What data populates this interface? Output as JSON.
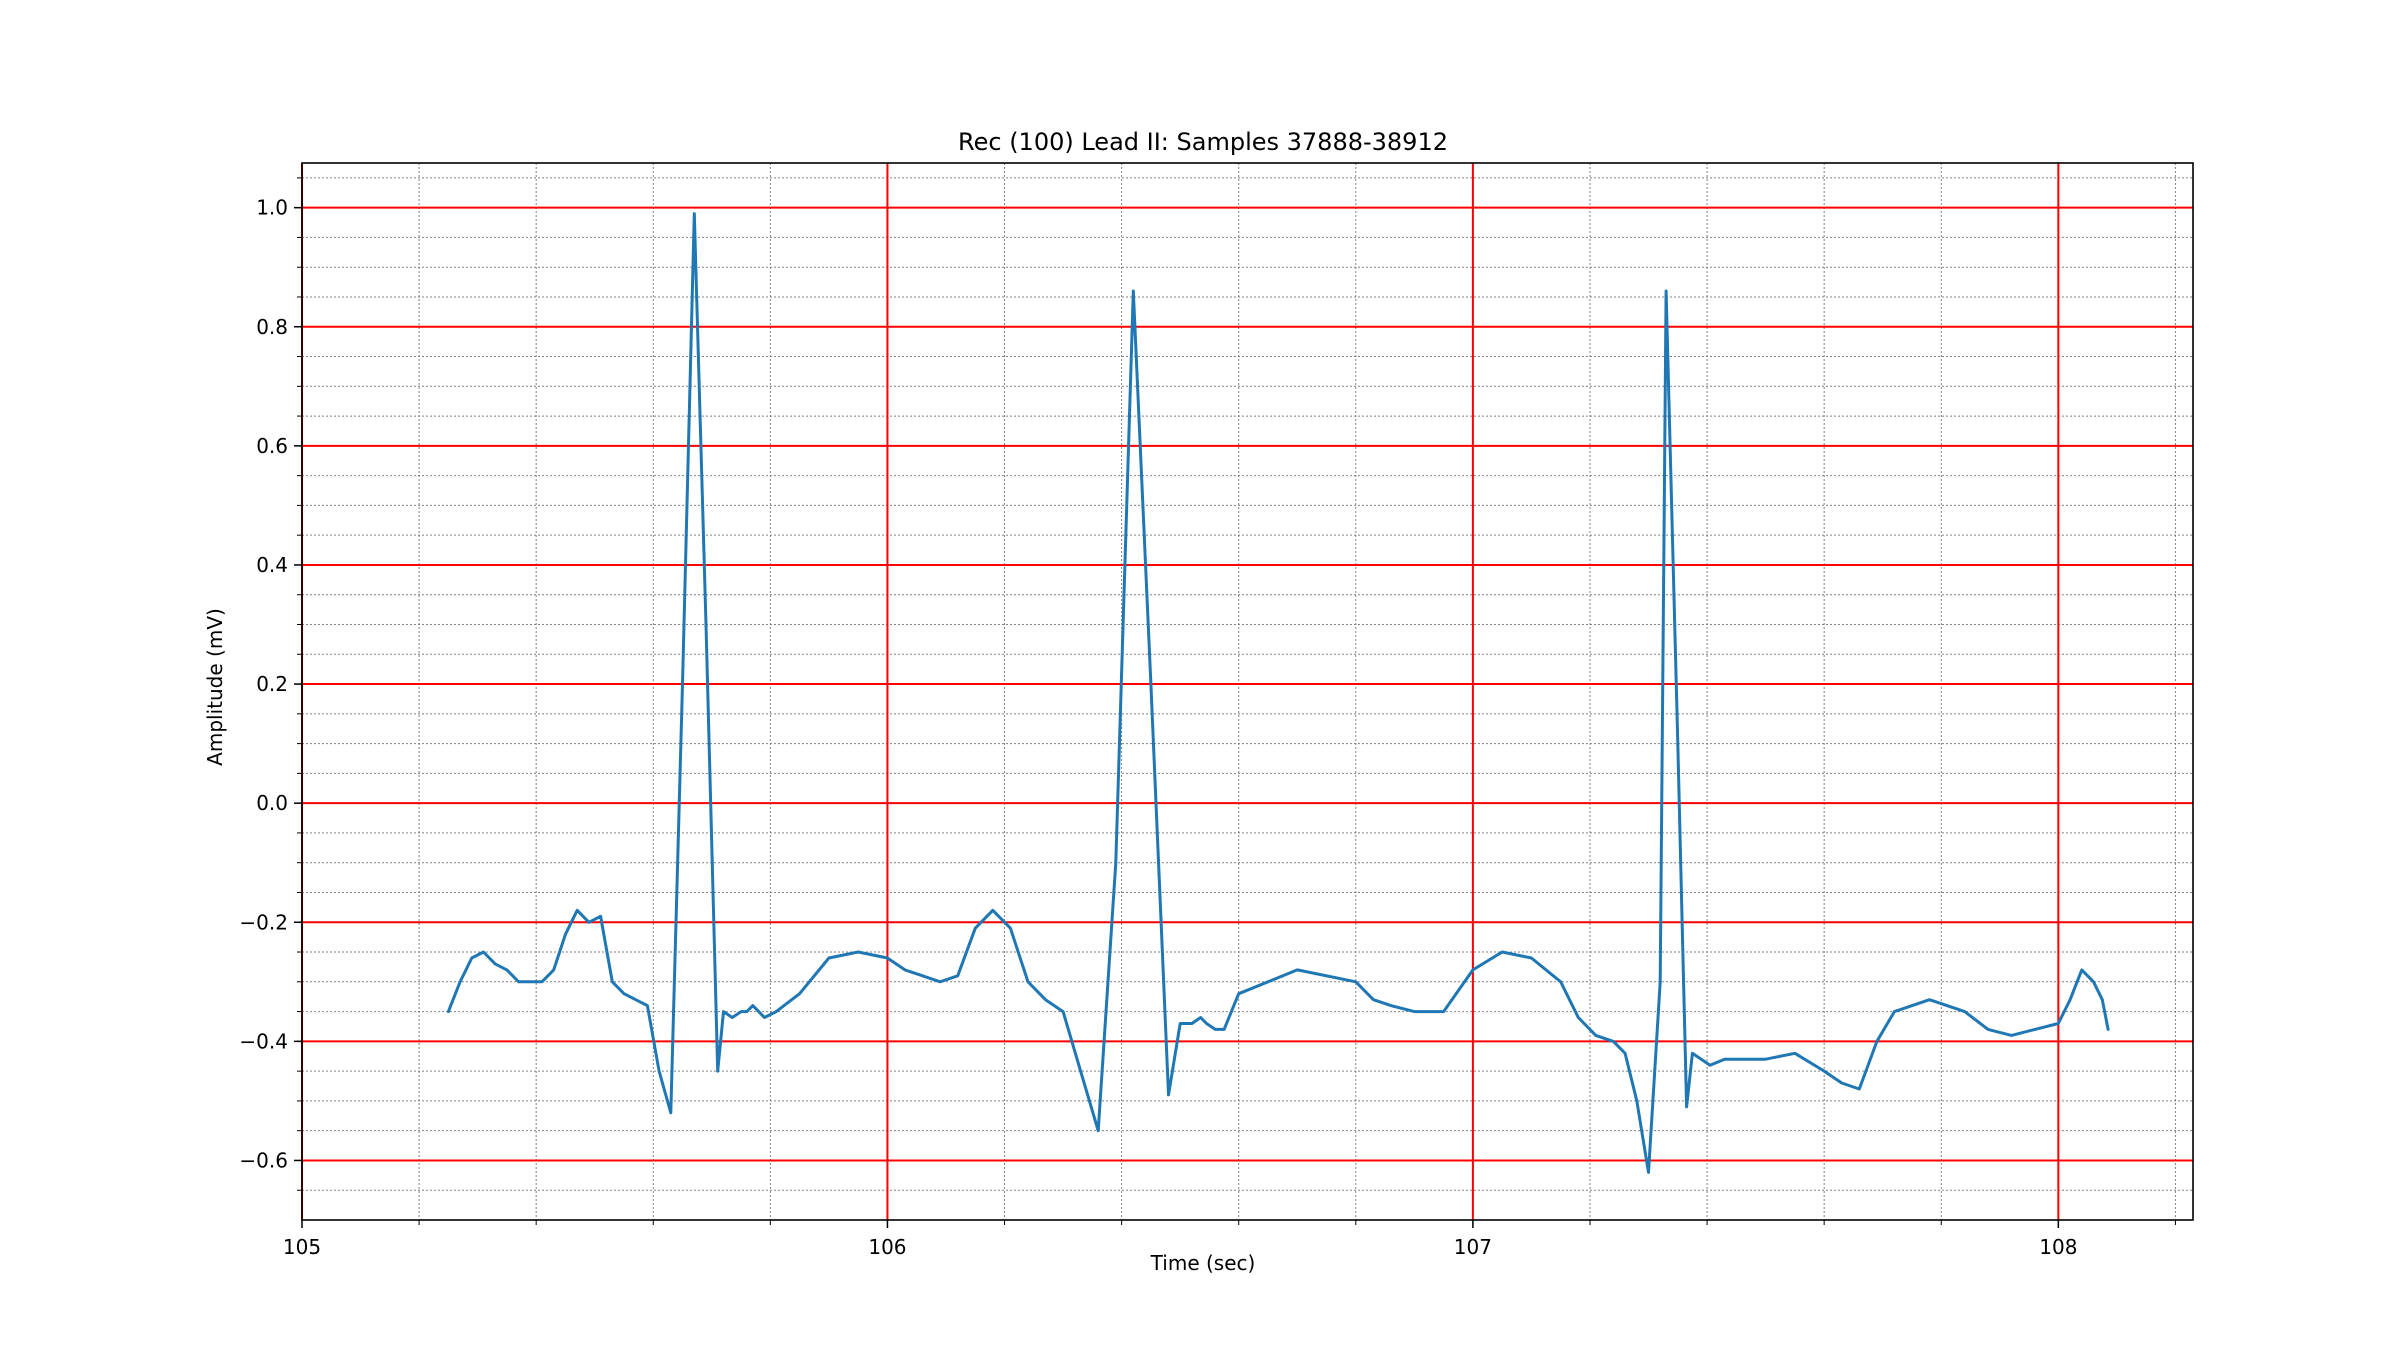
{
  "chart_data": {
    "type": "line",
    "title": "Rec (100) Lead II: Samples 37888-38912",
    "xlabel": "Time (sec)",
    "ylabel": "Amplitude (mV)",
    "xlim": [
      105.0,
      108.23
    ],
    "ylim": [
      -0.7,
      1.075
    ],
    "xticks": [
      105,
      106,
      107,
      108
    ],
    "xtick_labels": [
      "105",
      "106",
      "107",
      "108"
    ],
    "yticks": [
      -0.6,
      -0.4,
      -0.2,
      0.0,
      0.2,
      0.4,
      0.6,
      0.8,
      1.0
    ],
    "ytick_labels": [
      "−0.6",
      "−0.4",
      "−0.2",
      "0.0",
      "0.2",
      "0.4",
      "0.6",
      "0.8",
      "1.0"
    ],
    "grid": {
      "major": {
        "x_step": 1.0,
        "y_step": 0.2,
        "color": "#ff0000"
      },
      "minor": {
        "x_step": 0.2,
        "y_step": 0.05,
        "color": "#808080",
        "style": "dotted"
      }
    },
    "series": [
      {
        "color": "#1f77b4",
        "x": [
          105.25,
          105.27,
          105.29,
          105.31,
          105.33,
          105.35,
          105.37,
          105.39,
          105.41,
          105.43,
          105.45,
          105.47,
          105.49,
          105.51,
          105.53,
          105.55,
          105.57,
          105.59,
          105.61,
          105.63,
          105.65,
          105.67,
          105.69,
          105.71,
          105.72,
          105.735,
          105.75,
          105.76,
          105.77,
          105.78,
          105.79,
          105.81,
          105.85,
          105.9,
          105.95,
          106.0,
          106.03,
          106.06,
          106.09,
          106.12,
          106.15,
          106.18,
          106.21,
          106.24,
          106.27,
          106.3,
          106.33,
          106.36,
          106.39,
          106.42,
          106.45,
          106.48,
          106.5,
          106.52,
          106.535,
          106.545,
          106.56,
          106.575,
          106.6,
          106.7,
          106.8,
          106.83,
          106.86,
          106.9,
          106.95,
          107.0,
          107.05,
          107.1,
          107.15,
          107.18,
          107.21,
          107.24,
          107.26,
          107.28,
          107.3,
          107.32,
          107.33,
          107.35,
          107.365,
          107.375,
          107.39,
          107.405,
          107.43,
          107.5,
          107.55,
          107.6,
          107.63,
          107.66,
          107.69,
          107.72,
          107.78,
          107.84,
          107.88,
          107.92,
          107.96,
          108.0,
          108.02,
          108.04,
          108.06,
          108.075,
          108.085
        ],
        "y": [
          -0.35,
          -0.3,
          -0.26,
          -0.25,
          -0.27,
          -0.28,
          -0.3,
          -0.3,
          -0.3,
          -0.28,
          -0.22,
          -0.18,
          -0.2,
          -0.19,
          -0.3,
          -0.32,
          -0.33,
          -0.34,
          -0.45,
          -0.52,
          0.2,
          0.99,
          0.3,
          -0.45,
          -0.35,
          -0.36,
          -0.35,
          -0.35,
          -0.34,
          -0.35,
          -0.36,
          -0.35,
          -0.32,
          -0.26,
          -0.25,
          -0.26,
          -0.28,
          -0.29,
          -0.3,
          -0.29,
          -0.21,
          -0.18,
          -0.21,
          -0.3,
          -0.33,
          -0.35,
          -0.45,
          -0.55,
          -0.1,
          0.86,
          0.2,
          -0.49,
          -0.37,
          -0.37,
          -0.36,
          -0.37,
          -0.38,
          -0.38,
          -0.32,
          -0.28,
          -0.3,
          -0.33,
          -0.34,
          -0.35,
          -0.35,
          -0.28,
          -0.25,
          -0.26,
          -0.3,
          -0.36,
          -0.39,
          -0.4,
          -0.42,
          -0.5,
          -0.62,
          -0.3,
          0.86,
          0.1,
          -0.51,
          -0.42,
          -0.43,
          -0.44,
          -0.43,
          -0.43,
          -0.42,
          -0.45,
          -0.47,
          -0.48,
          -0.4,
          -0.35,
          -0.33,
          -0.35,
          -0.38,
          -0.39,
          -0.38,
          -0.37,
          -0.33,
          -0.28,
          -0.3,
          -0.33,
          -0.38
        ]
      }
    ]
  }
}
